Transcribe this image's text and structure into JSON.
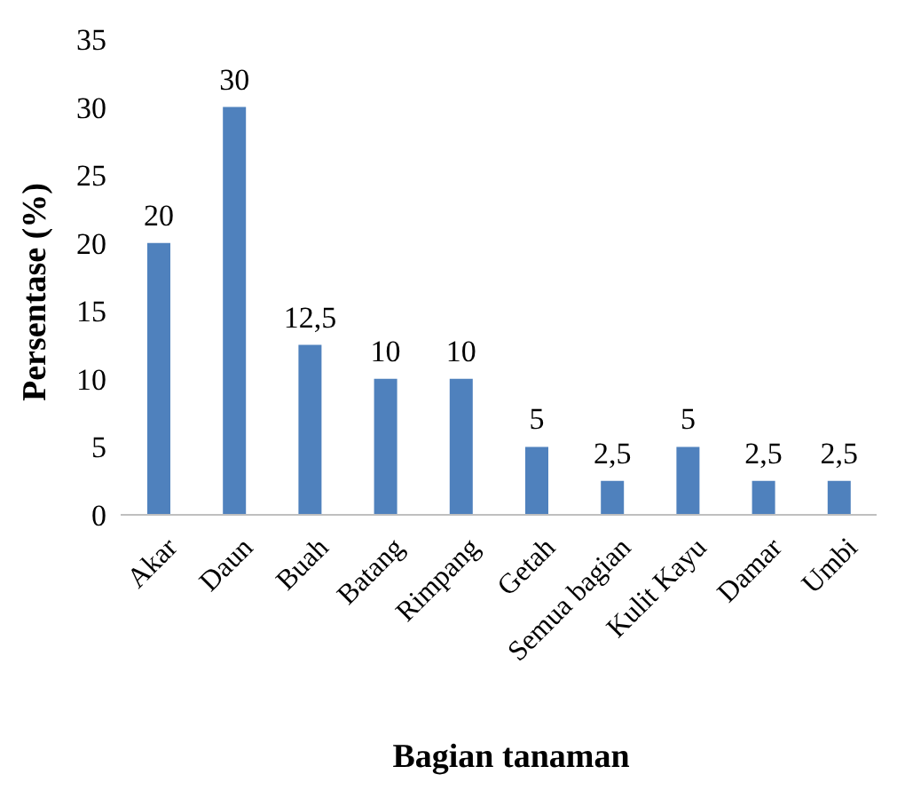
{
  "chart_data": {
    "type": "bar",
    "xlabel": "Bagian tanaman",
    "ylabel": "Persentase (%)",
    "categories": [
      "Akar",
      "Daun",
      "Buah",
      "Batang",
      "Rimpang",
      "Getah",
      "Semua bagian",
      "Kulit Kayu",
      "Damar",
      "Umbi"
    ],
    "values": [
      20,
      30,
      12.5,
      10,
      10,
      5,
      2.5,
      5,
      2.5,
      2.5
    ],
    "value_labels": [
      "20",
      "30",
      "12,5",
      "10",
      "10",
      "5",
      "2,5",
      "5",
      "2,5",
      "2,5"
    ],
    "color": "#4f81bd",
    "ylim": [
      0,
      35
    ],
    "yticks": [
      0,
      5,
      10,
      15,
      20,
      25,
      30,
      35
    ],
    "grid": false,
    "legend": false
  }
}
